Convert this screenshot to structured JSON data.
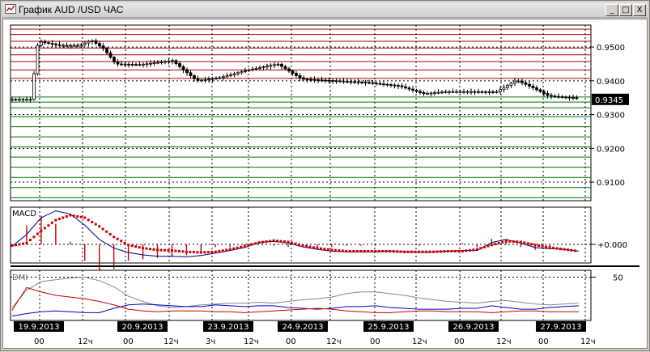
{
  "window": {
    "title": "График AUD /USD ЧАС",
    "icon": "chart-icon",
    "buttons": [
      "_",
      "□",
      "X"
    ]
  },
  "chart_data": [
    {
      "type": "candlestick",
      "title": "",
      "y_ticks": [
        "0.9500",
        "0.9400",
        "0.9300",
        "0.9200",
        "0.9100"
      ],
      "y_tick_values": [
        0.95,
        0.94,
        0.93,
        0.92,
        0.91
      ],
      "ylim": [
        0.9045,
        0.9565
      ],
      "current_price_label": "0.9345",
      "current_price": 0.9345,
      "resistance_levels": [
        0.9553,
        0.9537,
        0.9517,
        0.9497,
        0.9477,
        0.9457,
        0.9432,
        0.9407
      ],
      "support_levels": [
        0.9352,
        0.9337,
        0.932,
        0.9294,
        0.9264,
        0.9234,
        0.9204,
        0.9174,
        0.9144,
        0.9114,
        0.9084,
        0.9054
      ],
      "colors": {
        "resistance": "#b00000",
        "support": "#007000",
        "candle": "#000000",
        "current_price_bg": "#000000"
      },
      "grid": true
    },
    {
      "type": "line",
      "title": "MACD",
      "zero_label": "+0.000",
      "series": [
        {
          "name": "",
          "color": "#000080",
          "values": [
            -0.0003,
            0.0016,
            0.0043,
            0.0054,
            0.0049,
            0.0031,
            0.0008,
            -0.0006,
            -0.0013,
            -0.0017,
            -0.0019,
            -0.0019,
            -0.002,
            -0.0018,
            -0.0014,
            -0.001,
            -0.0005,
            0.0003,
            0.0005,
            0.0002,
            -0.0004,
            -0.0008,
            -0.0011,
            -0.0012,
            -0.0012,
            -0.0012,
            -0.0011,
            -0.0012,
            -0.0013,
            -0.0012,
            -0.0011,
            -0.001,
            -0.001,
            0.0003,
            0.0008,
            0.0002,
            -0.0005,
            -0.0007,
            -0.0008,
            -0.0011
          ]
        },
        {
          "name": "",
          "color": "#cc0000",
          "values": [
            -0.0002,
            0.0002,
            0.0022,
            0.0039,
            0.0047,
            0.0043,
            0.0029,
            0.0012,
            -0.0001,
            -0.0006,
            -0.0009,
            -0.001,
            -0.0012,
            -0.0013,
            -0.0012,
            -0.0008,
            -0.0003,
            0.0003,
            0.0006,
            0.0004,
            -0.0002,
            -0.0006,
            -0.0009,
            -0.0011,
            -0.0011,
            -0.0011,
            -0.0011,
            -0.0012,
            -0.0012,
            -0.0012,
            -0.0011,
            -0.0011,
            -0.0008,
            -0.0001,
            0.0005,
            0.0004,
            -0.0001,
            -0.0005,
            -0.0008,
            -0.0011
          ]
        }
      ],
      "colors": {
        "histogram": "#cc0000"
      },
      "grid": true
    },
    {
      "type": "line",
      "title": "DMI",
      "y_ticks": [
        "50"
      ],
      "ylim": [
        0,
        58
      ],
      "series": [
        {
          "name": "",
          "color": "#888888",
          "values": [
            15,
            35,
            45,
            47,
            49,
            50,
            46,
            39,
            28,
            22,
            17,
            15,
            16,
            18,
            19,
            20,
            20,
            21,
            20,
            22,
            24,
            25,
            27,
            31,
            33,
            33,
            31,
            29,
            26,
            24,
            22,
            21,
            20,
            22,
            23,
            21,
            19,
            18,
            19,
            20
          ]
        },
        {
          "name": "",
          "color": "#0000cc",
          "values": [
            5,
            8,
            10,
            11,
            10,
            9,
            9,
            14,
            18,
            19,
            18,
            17,
            16,
            16,
            18,
            17,
            16,
            17,
            17,
            15,
            14,
            13,
            14,
            16,
            16,
            17,
            15,
            14,
            13,
            13,
            13,
            14,
            14,
            17,
            15,
            13,
            13,
            15,
            16,
            17
          ]
        },
        {
          "name": "",
          "color": "#cc0000",
          "values": [
            12,
            38,
            33,
            29,
            27,
            25,
            22,
            18,
            13,
            11,
            10,
            11,
            11,
            11,
            10,
            10,
            9,
            10,
            11,
            12,
            13,
            14,
            13,
            11,
            10,
            9,
            9,
            10,
            11,
            11,
            10,
            10,
            10,
            9,
            10,
            11,
            11,
            10,
            10,
            10
          ]
        }
      ],
      "grid": true
    }
  ],
  "x_axis": {
    "date_labels": [
      "19.9.2013",
      "20.9.2013",
      "23.9.2013",
      "24.9.2013",
      "25.9.2013",
      "26.9.2013",
      "27.9.2013"
    ],
    "hour_labels": [
      "00",
      "12ч",
      "00",
      "12ч",
      "3ч",
      "12ч",
      "00",
      "12ч",
      "00",
      "12ч",
      "00",
      "12ч",
      "00",
      "12ч"
    ]
  }
}
